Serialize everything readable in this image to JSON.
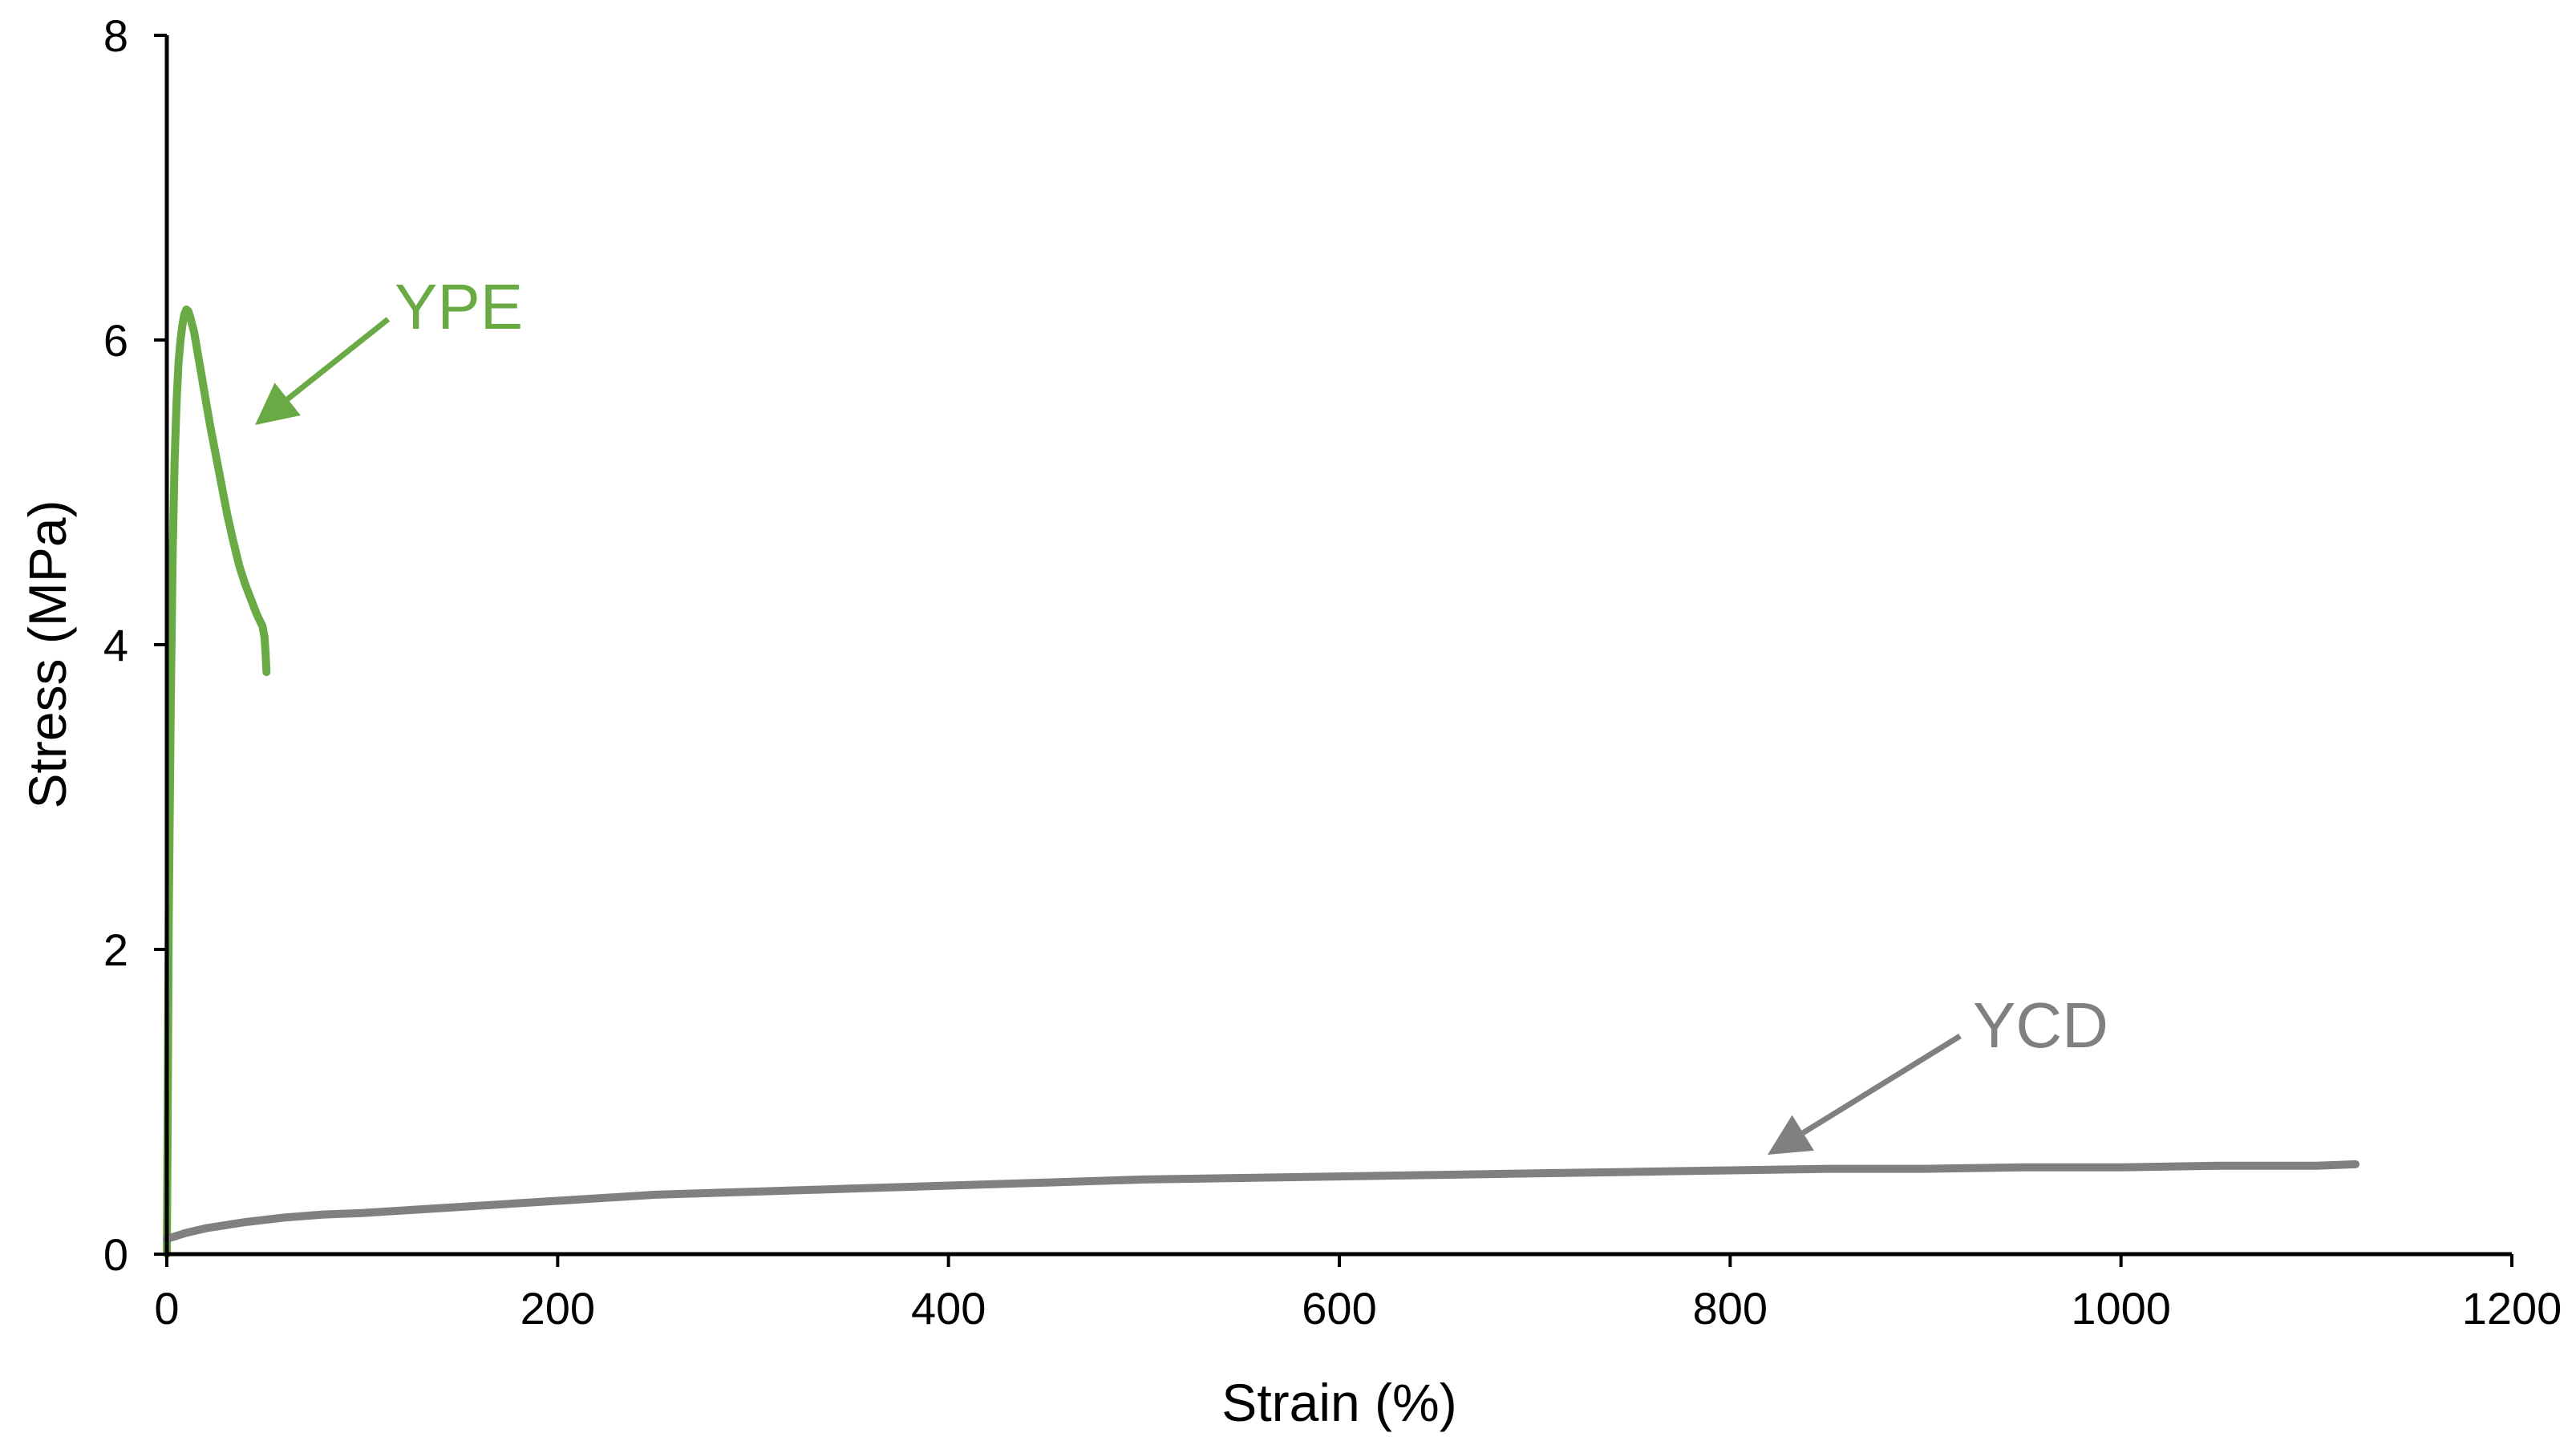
{
  "chart_data": {
    "type": "line",
    "title": "",
    "xlabel": "Strain (%)",
    "ylabel": "Stress (MPa)",
    "xlim": [
      0,
      1200
    ],
    "ylim": [
      0,
      8
    ],
    "xticks": [
      0,
      200,
      400,
      600,
      800,
      1000,
      1200
    ],
    "yticks": [
      0,
      2,
      4,
      6,
      8
    ],
    "grid": false,
    "legend": "none",
    "series": [
      {
        "name": "YPE",
        "color": "#6aaa45",
        "points": [
          [
            0,
            0.0
          ],
          [
            0.5,
            1.0
          ],
          [
            1,
            2.2
          ],
          [
            2,
            3.6
          ],
          [
            3,
            4.6
          ],
          [
            4,
            5.2
          ],
          [
            5,
            5.6
          ],
          [
            6,
            5.85
          ],
          [
            7,
            6.0
          ],
          [
            8,
            6.1
          ],
          [
            9,
            6.17
          ],
          [
            10,
            6.2
          ],
          [
            11,
            6.19
          ],
          [
            12,
            6.15
          ],
          [
            14,
            6.05
          ],
          [
            16,
            5.9
          ],
          [
            18,
            5.75
          ],
          [
            20,
            5.6
          ],
          [
            22,
            5.45
          ],
          [
            25,
            5.25
          ],
          [
            28,
            5.05
          ],
          [
            31,
            4.85
          ],
          [
            34,
            4.68
          ],
          [
            37,
            4.52
          ],
          [
            40,
            4.4
          ],
          [
            43,
            4.3
          ],
          [
            46,
            4.2
          ],
          [
            49,
            4.12
          ],
          [
            50,
            4.05
          ],
          [
            50.5,
            3.95
          ],
          [
            51,
            3.82
          ]
        ]
      },
      {
        "name": "YCD",
        "color": "#808080",
        "points": [
          [
            0,
            0.1
          ],
          [
            10,
            0.14
          ],
          [
            20,
            0.17
          ],
          [
            40,
            0.21
          ],
          [
            60,
            0.24
          ],
          [
            80,
            0.26
          ],
          [
            100,
            0.27
          ],
          [
            150,
            0.31
          ],
          [
            200,
            0.35
          ],
          [
            250,
            0.39
          ],
          [
            300,
            0.41
          ],
          [
            350,
            0.43
          ],
          [
            400,
            0.45
          ],
          [
            450,
            0.47
          ],
          [
            500,
            0.49
          ],
          [
            550,
            0.5
          ],
          [
            600,
            0.51
          ],
          [
            650,
            0.52
          ],
          [
            700,
            0.53
          ],
          [
            750,
            0.54
          ],
          [
            800,
            0.55
          ],
          [
            850,
            0.56
          ],
          [
            900,
            0.56
          ],
          [
            950,
            0.57
          ],
          [
            1000,
            0.57
          ],
          [
            1050,
            0.58
          ],
          [
            1100,
            0.58
          ],
          [
            1120,
            0.59
          ]
        ]
      }
    ],
    "annotations": [
      {
        "text": "YPE",
        "series": "YPE",
        "color": "#6aaa45"
      },
      {
        "text": "YCD",
        "series": "YCD",
        "color": "#808080"
      }
    ]
  }
}
